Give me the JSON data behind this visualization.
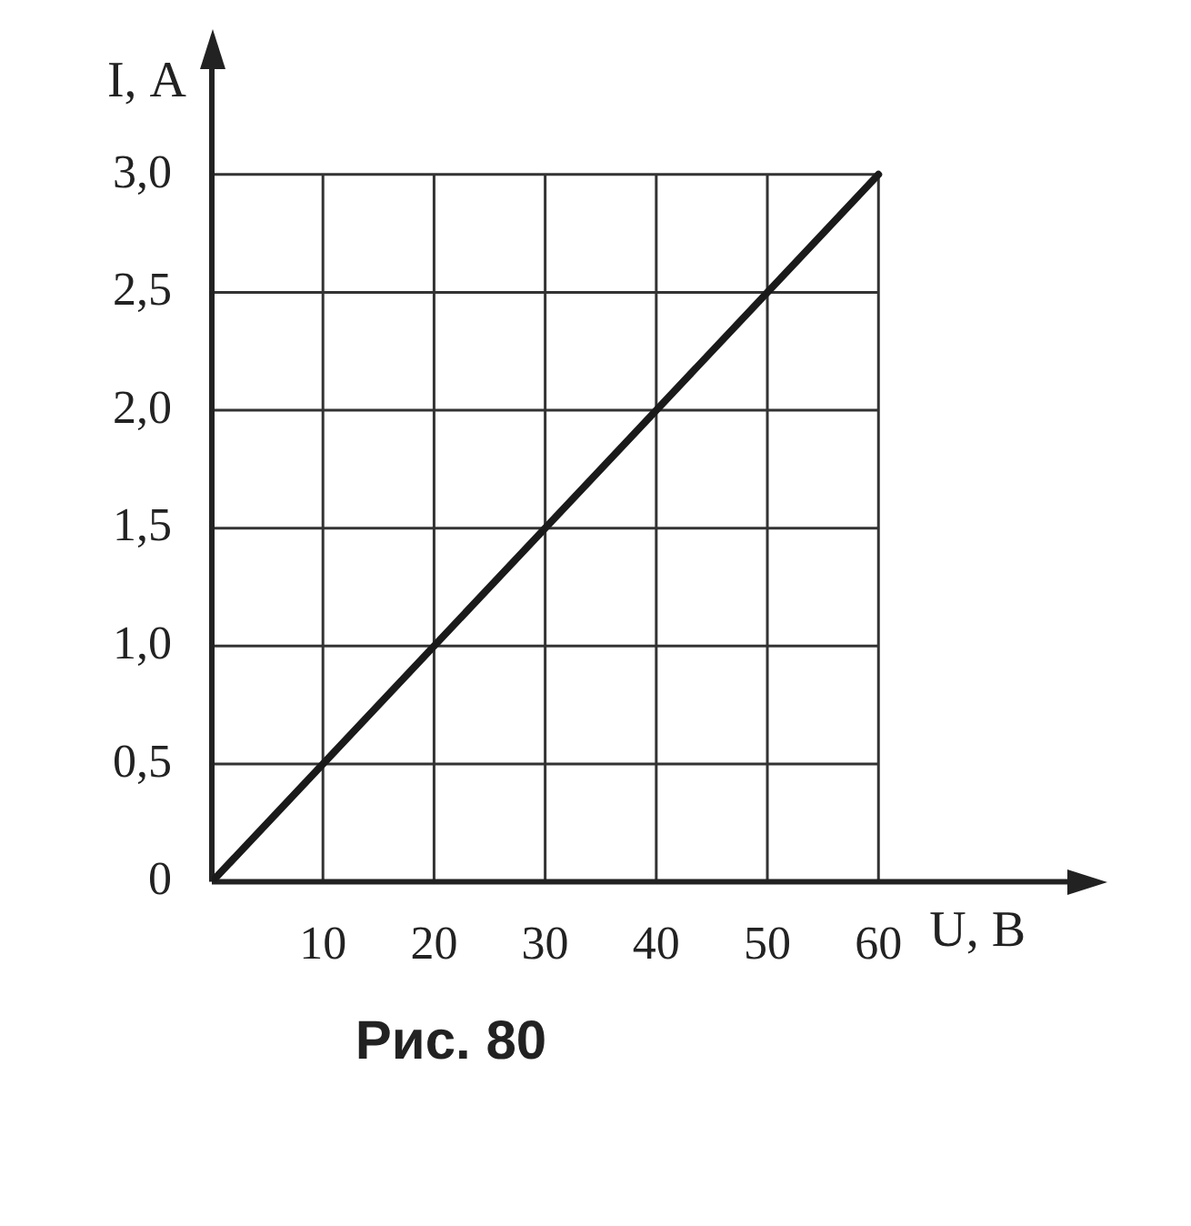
{
  "chart_data": {
    "type": "line",
    "xlabel": "U, В",
    "ylabel": "I, А",
    "x": [
      0,
      60
    ],
    "series": [
      {
        "color": "#1a1a1a",
        "values": [
          0,
          3.0
        ]
      }
    ],
    "xlim": [
      0,
      77
    ],
    "xticks": [
      10,
      20,
      30,
      40,
      50,
      60
    ],
    "ylim": [
      0,
      3.45
    ],
    "yticks": [
      {
        "value": 0,
        "label": "0"
      },
      {
        "value": 0.5,
        "label": "0,5"
      },
      {
        "value": 1,
        "label": "1,0"
      },
      {
        "value": 1.5,
        "label": "1,5"
      },
      {
        "value": 2,
        "label": "2,0"
      },
      {
        "value": 2.5,
        "label": "2,5"
      },
      {
        "value": 3,
        "label": "3,0"
      }
    ],
    "grid": true,
    "legend": false,
    "marker": "none",
    "line_style": "solid",
    "annotations": [
      "Рис. 80"
    ]
  }
}
